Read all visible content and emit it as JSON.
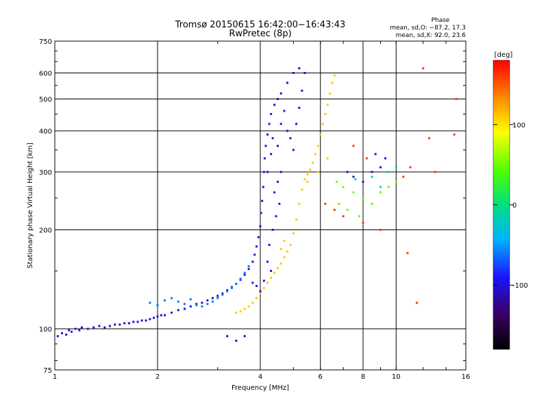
{
  "chart_data": {
    "type": "scatter",
    "title": "Tromsø 20150615 16:42:00−16:43:43",
    "subtitle": "RwPretec (8p)",
    "stats_header": "Phase",
    "stats_o": "mean, sd,O: −87.2, 17.3",
    "stats_x": "mean, sd,X:  92.0, 23.6",
    "xlabel": "Frequency [MHz]",
    "ylabel": "Stationary phase Virtual Height [km]",
    "x_scale": "log",
    "y_scale": "log",
    "xlim": [
      1,
      16
    ],
    "ylim": [
      75,
      750
    ],
    "x_ticks": [
      1,
      2,
      4,
      6,
      8,
      10,
      16
    ],
    "y_ticks": [
      75,
      100,
      200,
      300,
      400,
      500,
      600,
      750
    ],
    "grid": true,
    "colorbar": {
      "label": "[deg]",
      "range": [
        -180,
        180
      ],
      "ticks": [
        100,
        0,
        -100
      ]
    },
    "series": [
      {
        "phase_deg": -100,
        "points": [
          [
            1.02,
            95
          ],
          [
            1.05,
            97
          ],
          [
            1.08,
            96
          ],
          [
            1.1,
            99
          ],
          [
            1.12,
            98
          ],
          [
            1.15,
            100
          ],
          [
            1.18,
            99
          ],
          [
            1.2,
            101
          ],
          [
            1.25,
            100
          ],
          [
            1.3,
            101
          ],
          [
            1.35,
            102
          ],
          [
            1.4,
            101
          ],
          [
            1.45,
            102
          ],
          [
            1.5,
            103
          ],
          [
            1.55,
            103
          ],
          [
            1.6,
            104
          ],
          [
            1.65,
            104
          ],
          [
            1.7,
            105
          ],
          [
            1.75,
            105
          ],
          [
            1.8,
            106
          ],
          [
            1.85,
            106
          ],
          [
            1.9,
            107
          ],
          [
            1.95,
            108
          ],
          [
            2.0,
            109
          ],
          [
            2.05,
            110
          ],
          [
            2.1,
            110
          ],
          [
            2.2,
            112
          ],
          [
            2.3,
            114
          ],
          [
            2.4,
            115
          ],
          [
            2.5,
            117
          ],
          [
            2.6,
            119
          ],
          [
            2.7,
            120
          ],
          [
            2.8,
            122
          ],
          [
            2.9,
            124
          ],
          [
            3.0,
            126
          ],
          [
            3.1,
            128
          ],
          [
            3.2,
            131
          ],
          [
            3.3,
            134
          ],
          [
            3.4,
            137
          ],
          [
            3.5,
            141
          ],
          [
            3.6,
            146
          ],
          [
            3.7,
            152
          ],
          [
            3.8,
            160
          ],
          [
            3.85,
            168
          ],
          [
            3.9,
            178
          ],
          [
            3.95,
            190
          ],
          [
            4.0,
            205
          ],
          [
            4.02,
            225
          ],
          [
            4.05,
            245
          ],
          [
            4.08,
            270
          ],
          [
            4.1,
            300
          ],
          [
            4.12,
            330
          ],
          [
            4.15,
            360
          ],
          [
            4.2,
            390
          ],
          [
            4.25,
            420
          ],
          [
            4.3,
            450
          ],
          [
            4.4,
            480
          ],
          [
            4.5,
            500
          ],
          [
            4.6,
            520
          ],
          [
            4.8,
            560
          ],
          [
            5.0,
            600
          ],
          [
            5.2,
            620
          ],
          [
            4.2,
            300
          ],
          [
            4.3,
            340
          ],
          [
            4.35,
            380
          ],
          [
            4.5,
            360
          ],
          [
            4.6,
            420
          ],
          [
            4.7,
            460
          ],
          [
            4.8,
            400
          ],
          [
            4.9,
            380
          ],
          [
            5.0,
            350
          ],
          [
            5.1,
            420
          ],
          [
            5.2,
            470
          ],
          [
            5.3,
            530
          ],
          [
            5.4,
            600
          ],
          [
            4.4,
            260
          ],
          [
            4.5,
            280
          ],
          [
            4.6,
            300
          ],
          [
            4.55,
            240
          ],
          [
            4.45,
            220
          ],
          [
            4.35,
            200
          ],
          [
            4.25,
            180
          ],
          [
            4.2,
            160
          ],
          [
            4.3,
            150
          ],
          [
            4.1,
            140
          ],
          [
            4.0,
            130
          ],
          [
            3.9,
            135
          ],
          [
            3.8,
            138
          ],
          [
            7.2,
            300
          ],
          [
            7.5,
            290
          ],
          [
            8.0,
            280
          ],
          [
            8.5,
            300
          ],
          [
            9.0,
            310
          ],
          [
            9.3,
            330
          ],
          [
            8.7,
            340
          ]
        ]
      },
      {
        "phase_deg": -60,
        "points": [
          [
            1.9,
            120
          ],
          [
            2.0,
            118
          ],
          [
            2.1,
            122
          ],
          [
            2.2,
            124
          ],
          [
            2.3,
            121
          ],
          [
            2.4,
            119
          ],
          [
            2.5,
            123
          ],
          [
            2.6,
            118
          ],
          [
            2.7,
            117
          ],
          [
            2.8,
            119
          ],
          [
            2.9,
            121
          ],
          [
            3.0,
            124
          ],
          [
            3.1,
            127
          ],
          [
            3.2,
            130
          ],
          [
            3.3,
            133
          ],
          [
            3.4,
            137
          ],
          [
            3.5,
            142
          ],
          [
            3.6,
            148
          ],
          [
            3.7,
            155
          ]
        ]
      },
      {
        "phase_deg": 110,
        "points": [
          [
            3.4,
            112
          ],
          [
            3.5,
            113
          ],
          [
            3.6,
            115
          ],
          [
            3.7,
            117
          ],
          [
            3.8,
            120
          ],
          [
            3.9,
            124
          ],
          [
            4.0,
            128
          ],
          [
            4.1,
            133
          ],
          [
            4.2,
            138
          ],
          [
            4.3,
            143
          ],
          [
            4.4,
            148
          ],
          [
            4.5,
            153
          ],
          [
            4.6,
            158
          ],
          [
            4.7,
            165
          ],
          [
            4.8,
            172
          ],
          [
            4.9,
            180
          ],
          [
            5.0,
            195
          ],
          [
            5.1,
            215
          ],
          [
            5.2,
            240
          ],
          [
            5.3,
            265
          ],
          [
            5.4,
            285
          ],
          [
            5.5,
            295
          ],
          [
            5.6,
            305
          ],
          [
            5.7,
            320
          ],
          [
            5.8,
            340
          ],
          [
            5.9,
            360
          ],
          [
            6.0,
            390
          ],
          [
            6.1,
            420
          ],
          [
            6.2,
            450
          ],
          [
            6.3,
            480
          ],
          [
            6.4,
            520
          ],
          [
            6.5,
            560
          ],
          [
            6.6,
            590
          ],
          [
            4.6,
            175
          ],
          [
            4.7,
            185
          ],
          [
            5.5,
            280
          ],
          [
            5.9,
            300
          ],
          [
            6.3,
            330
          ]
        ]
      },
      {
        "phase_deg": 50,
        "points": [
          [
            6.7,
            280
          ],
          [
            7.0,
            270
          ],
          [
            7.5,
            260
          ],
          [
            8.0,
            250
          ],
          [
            8.5,
            240
          ],
          [
            9.0,
            260
          ],
          [
            9.5,
            270
          ],
          [
            10.0,
            280
          ],
          [
            6.8,
            240
          ],
          [
            7.2,
            230
          ],
          [
            7.8,
            220
          ]
        ]
      },
      {
        "phase_deg": 160,
        "points": [
          [
            6.2,
            240
          ],
          [
            6.6,
            230
          ],
          [
            7.0,
            220
          ],
          [
            8.0,
            210
          ],
          [
            9.0,
            200
          ],
          [
            10.5,
            290
          ],
          [
            11.0,
            310
          ],
          [
            12.0,
            620
          ],
          [
            12.5,
            380
          ],
          [
            13.0,
            300
          ],
          [
            11.5,
            120
          ],
          [
            10.8,
            170
          ],
          [
            14.8,
            390
          ],
          [
            15.0,
            500
          ],
          [
            7.5,
            360
          ],
          [
            8.2,
            330
          ]
        ]
      },
      {
        "phase_deg": 0,
        "points": [
          [
            8.5,
            290
          ],
          [
            9.0,
            270
          ],
          [
            7.6,
            285
          ],
          [
            9.5,
            300
          ],
          [
            10.0,
            310
          ]
        ]
      },
      {
        "phase_deg": -110,
        "points": [
          [
            3.4,
            92
          ],
          [
            3.6,
            95
          ],
          [
            3.2,
            95
          ]
        ]
      }
    ]
  }
}
